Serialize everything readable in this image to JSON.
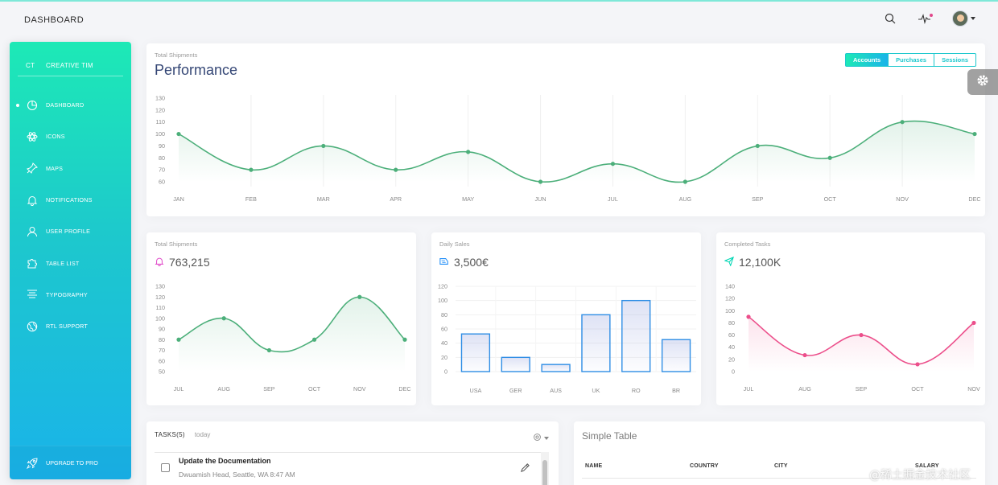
{
  "topbar": {
    "title": "DASHBOARD",
    "icons": [
      "search-icon",
      "activity-icon",
      "avatar"
    ]
  },
  "sidebar": {
    "logo_mini": "CT",
    "logo_text": "CREATIVE TIM",
    "items": [
      {
        "label": "DASHBOARD",
        "icon": "chart-pie-icon",
        "active": true
      },
      {
        "label": "ICONS",
        "icon": "atom-icon",
        "active": false
      },
      {
        "label": "MAPS",
        "icon": "pin-icon",
        "active": false
      },
      {
        "label": "NOTIFICATIONS",
        "icon": "bell-icon",
        "active": false
      },
      {
        "label": "USER PROFILE",
        "icon": "user-icon",
        "active": false
      },
      {
        "label": "TABLE LIST",
        "icon": "puzzle-icon",
        "active": false
      },
      {
        "label": "TYPOGRAPHY",
        "icon": "align-center-icon",
        "active": false
      },
      {
        "label": "RTL SUPPORT",
        "icon": "world-icon",
        "active": false
      }
    ],
    "upgrade_label": "UPGRADE TO PRO"
  },
  "performance": {
    "category": "Total Shipments",
    "title": "Performance",
    "tabs": [
      "Accounts",
      "Purchases",
      "Sessions"
    ],
    "active_tab": "Accounts"
  },
  "mini_cards": [
    {
      "category": "Total Shipments",
      "value": "763,215",
      "icon": "bell-icon"
    },
    {
      "category": "Daily Sales",
      "value": "3,500€",
      "icon": "delivery-icon"
    },
    {
      "category": "Completed Tasks",
      "value": "12,100K",
      "icon": "send-icon"
    }
  ],
  "tasks": {
    "title": "TASKS(5)",
    "subtitle": "today",
    "items": [
      {
        "name": "Update the Documentation",
        "desc": "Dwuamish Head, Seattle, WA 8:47 AM"
      }
    ]
  },
  "simple_table": {
    "title": "Simple Table",
    "columns": [
      "NAME",
      "COUNTRY",
      "CITY",
      "SALARY"
    ]
  },
  "watermark": "@稀土掘金技术社区",
  "colors": {
    "accent": "#1dc8cd",
    "line_green": "#4caf7a",
    "line_pink": "#ec4f8b",
    "bar_blue": "#2f8ee5"
  },
  "chart_data": [
    {
      "type": "line",
      "categories": [
        "JAN",
        "FEB",
        "MAR",
        "APR",
        "MAY",
        "JUN",
        "JUL",
        "AUG",
        "SEP",
        "OCT",
        "NOV",
        "DEC"
      ],
      "values": [
        100,
        70,
        90,
        70,
        85,
        60,
        75,
        60,
        90,
        80,
        110,
        100
      ],
      "yticks": [
        60,
        70,
        80,
        90,
        100,
        110,
        120,
        130
      ],
      "ylim": [
        60,
        130
      ]
    },
    {
      "type": "line",
      "categories": [
        "JUL",
        "AUG",
        "SEP",
        "OCT",
        "NOV",
        "DEC"
      ],
      "values": [
        80,
        100,
        70,
        80,
        120,
        80
      ],
      "yticks": [
        50,
        60,
        70,
        80,
        90,
        100,
        110,
        120,
        130
      ],
      "ylim": [
        50,
        130
      ]
    },
    {
      "type": "bar",
      "categories": [
        "USA",
        "GER",
        "AUS",
        "UK",
        "RO",
        "BR"
      ],
      "values": [
        53,
        20,
        10,
        80,
        100,
        45
      ],
      "yticks": [
        0,
        20,
        40,
        60,
        80,
        100,
        120
      ],
      "ylim": [
        0,
        120
      ]
    },
    {
      "type": "line",
      "categories": [
        "JUL",
        "AUG",
        "SEP",
        "OCT",
        "NOV"
      ],
      "values": [
        90,
        27,
        60,
        12,
        80
      ],
      "yticks": [
        0,
        20,
        40,
        60,
        80,
        100,
        120,
        140
      ],
      "ylim": [
        0,
        140
      ]
    }
  ]
}
